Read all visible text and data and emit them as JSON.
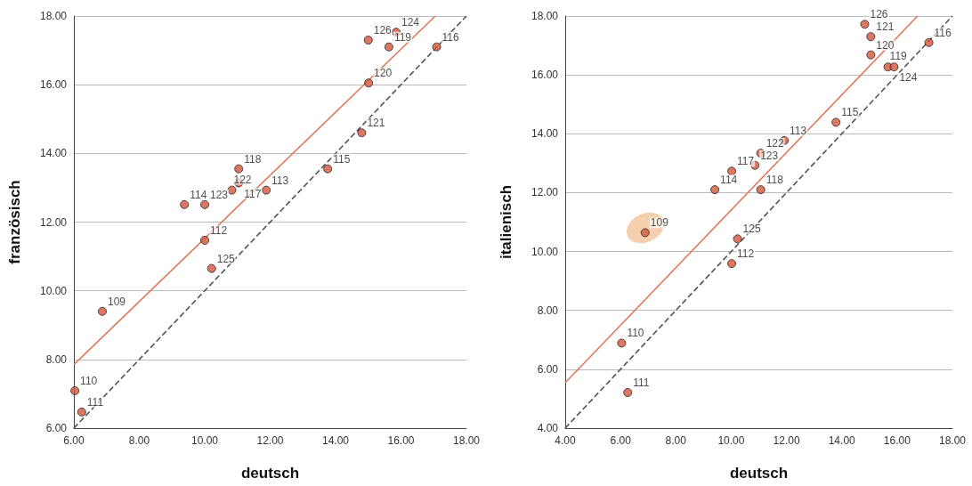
{
  "chart_data": [
    {
      "type": "scatter",
      "xlabel": "deutsch",
      "ylabel": "französisch",
      "xlim": [
        6,
        18
      ],
      "ylim": [
        6,
        18
      ],
      "xticks": [
        {
          "value": 6,
          "label": "6.00"
        },
        {
          "value": 8,
          "label": "8.00"
        },
        {
          "value": 10,
          "label": "10.00"
        },
        {
          "value": 12,
          "label": "12.00"
        },
        {
          "value": 14,
          "label": "14.00"
        },
        {
          "value": 16,
          "label": "16.00"
        },
        {
          "value": 18,
          "label": "18.00"
        }
      ],
      "yticks": [
        {
          "value": 6,
          "label": "6.00"
        },
        {
          "value": 8,
          "label": "8.00"
        },
        {
          "value": 10,
          "label": "10.00"
        },
        {
          "value": 12,
          "label": "12.00"
        },
        {
          "value": 14,
          "label": "14.00"
        },
        {
          "value": 16,
          "label": "16.00"
        },
        {
          "value": 18,
          "label": "18.00"
        }
      ],
      "grid": "y",
      "series": [
        {
          "marker": "circle",
          "color": "#d4553a",
          "x": [
            15,
            15.85,
            15.63,
            17.09,
            15.01,
            14.8,
            11.04,
            11.04,
            10.83,
            11.88,
            9.38,
            10,
            10,
            13.76,
            10.21,
            6.87,
            6.03,
            6.24
          ],
          "values": [
            17.3,
            17.53,
            17.1,
            17.1,
            16.05,
            14.6,
            13.55,
            13.14,
            12.93,
            12.93,
            12.51,
            12.51,
            11.47,
            13.55,
            10.65,
            9.4,
            7.09,
            6.47
          ]
        },
        {
          "type": "line",
          "marker": "none",
          "color": "#e0785c",
          "line_style": "solid",
          "x": [
            6,
            17.05
          ],
          "values": [
            7.85,
            18
          ]
        },
        {
          "type": "line",
          "marker": "none",
          "color": "#555555",
          "line_style": "dashed",
          "x": [
            6,
            18
          ],
          "values": [
            6,
            18
          ]
        }
      ],
      "annotations": [
        {
          "text": "126",
          "x": 15,
          "y": 17.3
        },
        {
          "text": "124",
          "x": 15.85,
          "y": 17.53
        },
        {
          "text": "119",
          "x": 15.63,
          "y": 17.1
        },
        {
          "text": "116",
          "x": 17.09,
          "y": 17.1
        },
        {
          "text": "120",
          "x": 15.01,
          "y": 16.05
        },
        {
          "text": "121",
          "x": 14.8,
          "y": 14.6
        },
        {
          "text": "118",
          "x": 11.04,
          "y": 13.55
        },
        {
          "text": "117",
          "x": 11.04,
          "y": 13.14
        },
        {
          "text": "122",
          "x": 10.83,
          "y": 12.93
        },
        {
          "text": "113",
          "x": 11.88,
          "y": 12.93
        },
        {
          "text": "114",
          "x": 9.38,
          "y": 12.51
        },
        {
          "text": "123",
          "x": 10,
          "y": 12.51
        },
        {
          "text": "112",
          "x": 10,
          "y": 11.47
        },
        {
          "text": "115",
          "x": 13.76,
          "y": 13.55
        },
        {
          "text": "125",
          "x": 10.21,
          "y": 10.65
        },
        {
          "text": "109",
          "x": 6.87,
          "y": 9.4
        },
        {
          "text": "110",
          "x": 6.03,
          "y": 7.09
        },
        {
          "text": "111",
          "x": 6.24,
          "y": 6.47
        }
      ]
    },
    {
      "type": "scatter",
      "xlabel": "deutsch",
      "ylabel": "italienisch",
      "xlim": [
        4,
        18
      ],
      "ylim": [
        4,
        18
      ],
      "xticks": [
        {
          "value": 4,
          "label": "4.00"
        },
        {
          "value": 6,
          "label": "6.00"
        },
        {
          "value": 8,
          "label": "8.00"
        },
        {
          "value": 10,
          "label": "10.00"
        },
        {
          "value": 12,
          "label": "12.00"
        },
        {
          "value": 14,
          "label": "14.00"
        },
        {
          "value": 16,
          "label": "16.00"
        },
        {
          "value": 18,
          "label": "18.00"
        }
      ],
      "yticks": [
        {
          "value": 4,
          "label": "4.00"
        },
        {
          "value": 6,
          "label": "6.00"
        },
        {
          "value": 8,
          "label": "8.00"
        },
        {
          "value": 10,
          "label": "10.00"
        },
        {
          "value": 12,
          "label": "12.00"
        },
        {
          "value": 14,
          "label": "14.00"
        },
        {
          "value": 16,
          "label": "16.00"
        },
        {
          "value": 18,
          "label": "18.00"
        }
      ],
      "grid": "y",
      "series": [
        {
          "marker": "circle",
          "color": "#d4553a",
          "x": [
            14.83,
            15.05,
            15.05,
            15.67,
            15.89,
            17.15,
            13.79,
            11.92,
            11.07,
            10.86,
            10.02,
            9.41,
            11.07,
            6.89,
            10.23,
            10.02,
            6.04,
            6.26
          ],
          "values": [
            17.72,
            17.3,
            16.68,
            16.27,
            16.27,
            17.1,
            14.39,
            13.77,
            13.34,
            12.93,
            12.73,
            12.1,
            12.1,
            10.64,
            10.43,
            9.59,
            6.89,
            5.21
          ]
        },
        {
          "type": "line",
          "marker": "none",
          "color": "#e0785c",
          "line_style": "solid",
          "x": [
            4,
            16.74
          ],
          "values": [
            5.54,
            18
          ]
        },
        {
          "type": "line",
          "marker": "none",
          "color": "#555555",
          "line_style": "dashed",
          "x": [
            4,
            18
          ],
          "values": [
            4,
            18
          ]
        }
      ],
      "annotations": [
        {
          "text": "126",
          "x": 14.83,
          "y": 17.72
        },
        {
          "text": "121",
          "x": 15.05,
          "y": 17.3
        },
        {
          "text": "120",
          "x": 15.05,
          "y": 16.68
        },
        {
          "text": "119",
          "x": 15.67,
          "y": 16.27
        },
        {
          "text": "124",
          "x": 15.89,
          "y": 16.27
        },
        {
          "text": "116",
          "x": 17.15,
          "y": 17.1
        },
        {
          "text": "115",
          "x": 13.79,
          "y": 14.39
        },
        {
          "text": "113",
          "x": 11.92,
          "y": 13.77
        },
        {
          "text": "122",
          "x": 11.07,
          "y": 13.34
        },
        {
          "text": "123",
          "x": 10.86,
          "y": 12.93
        },
        {
          "text": "117",
          "x": 10.02,
          "y": 12.73
        },
        {
          "text": "114",
          "x": 9.41,
          "y": 12.1
        },
        {
          "text": "118",
          "x": 11.07,
          "y": 12.1
        },
        {
          "text": "109",
          "x": 6.89,
          "y": 10.64
        },
        {
          "text": "125",
          "x": 10.23,
          "y": 10.43
        },
        {
          "text": "112",
          "x": 10.02,
          "y": 9.59
        },
        {
          "text": "110",
          "x": 6.04,
          "y": 6.89
        },
        {
          "text": "111",
          "x": 6.26,
          "y": 5.21
        }
      ]
    }
  ]
}
